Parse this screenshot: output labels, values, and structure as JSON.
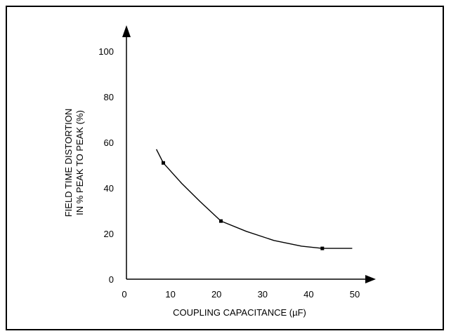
{
  "chart_data": {
    "type": "line",
    "title": "",
    "xlabel": "COUPLING CAPACITANCE (µF)",
    "ylabel_lines": [
      "FIELD TIME DISTORTION",
      "IN % PEAK TO PEAK (%)"
    ],
    "xlim": [
      0,
      50
    ],
    "ylim": [
      0,
      100
    ],
    "x_ticks": [
      0,
      10,
      20,
      30,
      40,
      50
    ],
    "y_ticks": [
      0,
      20,
      40,
      60,
      80,
      100
    ],
    "grid": false,
    "series": [
      {
        "points": [
          {
            "x": 6.5,
            "y": 57
          },
          {
            "x": 8,
            "y": 51
          },
          {
            "x": 12,
            "y": 42
          },
          {
            "x": 16,
            "y": 34
          },
          {
            "x": 20.5,
            "y": 25.5
          },
          {
            "x": 26,
            "y": 21
          },
          {
            "x": 32,
            "y": 17
          },
          {
            "x": 38,
            "y": 14.5
          },
          {
            "x": 42.5,
            "y": 13.5
          },
          {
            "x": 49,
            "y": 13.5
          }
        ],
        "markers": [
          {
            "x": 8,
            "y": 51
          },
          {
            "x": 20.5,
            "y": 25.5
          },
          {
            "x": 42.5,
            "y": 13.5
          }
        ]
      }
    ],
    "colors": {
      "line": "#000000",
      "axis": "#000000"
    }
  }
}
